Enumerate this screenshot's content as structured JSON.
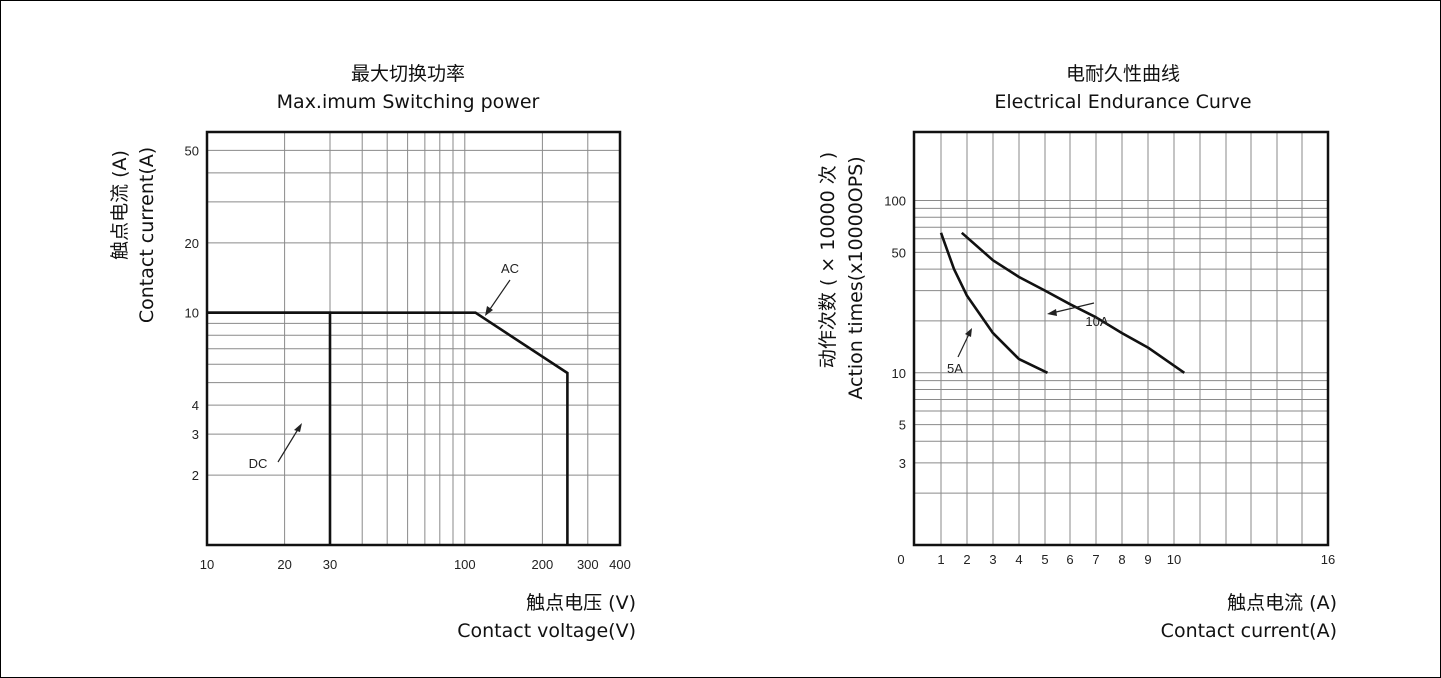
{
  "chart_data": [
    {
      "type": "line",
      "title": "最大切换功率",
      "subtitle": "Max.imum Switching power",
      "xlabel_cn": "触点电压 (V)",
      "xlabel": "Contact voltage(V)",
      "ylabel_cn": "触点电流 (A)",
      "ylabel": "Contact current(A)",
      "x_scale": "log",
      "y_scale": "log",
      "xlim": [
        10,
        400
      ],
      "ylim": [
        1,
        60
      ],
      "x_ticks": [
        10,
        20,
        30,
        100,
        200,
        300,
        400
      ],
      "x_tick_labels": [
        "10",
        "20",
        "30",
        "100",
        "200",
        "300",
        "400"
      ],
      "y_ticks": [
        2,
        3,
        4,
        10,
        20,
        50
      ],
      "y_tick_labels": [
        "2",
        "3",
        "4",
        "10",
        "20",
        "50"
      ],
      "series": [
        {
          "name": "DC",
          "x": [
            10,
            30,
            30
          ],
          "y": [
            10,
            10,
            1
          ]
        },
        {
          "name": "AC",
          "x": [
            10,
            110,
            250,
            250
          ],
          "y": [
            10,
            10,
            5.5,
            1
          ]
        }
      ],
      "annotations": [
        "DC",
        "AC"
      ],
      "grid": true
    },
    {
      "type": "line",
      "title": "电耐久性曲线",
      "subtitle": "Electrical Endurance Curve",
      "xlabel_cn": "触点电流 (A)",
      "xlabel": "Contact current(A)",
      "ylabel_cn": "动作次数 ( × 10000 次 )",
      "ylabel": "Action times(x10000OPS)",
      "x_scale": "linear",
      "y_scale": "log",
      "xlim": [
        0,
        16
      ],
      "ylim": [
        1,
        250
      ],
      "x_ticks": [
        0,
        1,
        2,
        3,
        4,
        5,
        6,
        7,
        8,
        9,
        10,
        16
      ],
      "x_tick_labels": [
        "0",
        "1",
        "2",
        "3",
        "4",
        "5",
        "6",
        "7",
        "8",
        "9",
        "10",
        "16"
      ],
      "y_ticks": [
        3,
        5,
        10,
        50,
        100
      ],
      "y_tick_labels": [
        "3",
        "5",
        "10",
        "50",
        "100"
      ],
      "series": [
        {
          "name": "5A",
          "x": [
            1,
            1.5,
            2,
            3,
            4,
            5.1
          ],
          "y": [
            65,
            40,
            28,
            17,
            12,
            10
          ]
        },
        {
          "name": "10A",
          "x": [
            1.8,
            3,
            4,
            5,
            6,
            7,
            8,
            9,
            10.4
          ],
          "y": [
            65,
            45,
            36,
            30,
            25,
            21,
            17,
            14,
            10
          ]
        }
      ],
      "annotations": [
        "5A",
        "10A"
      ],
      "grid": true
    }
  ]
}
